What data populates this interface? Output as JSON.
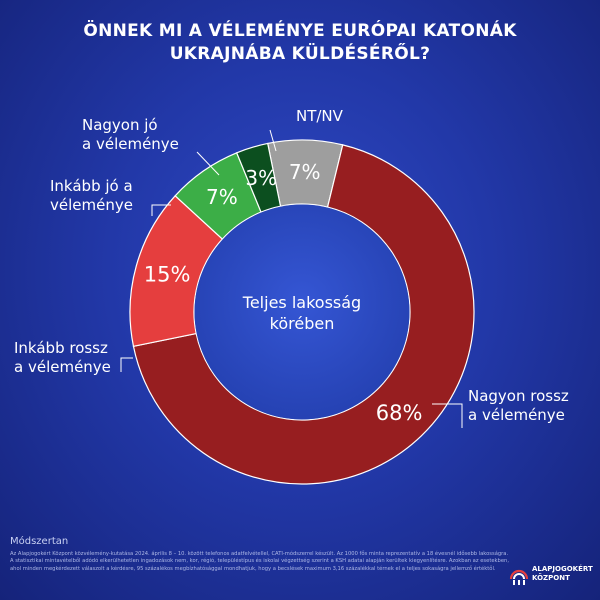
{
  "title_lines": [
    "ÖNNEK MI A VÉLEMÉNYE EURÓPAI KATONÁK",
    "UKRAJNÁBA KÜLDÉSÉRŐL?"
  ],
  "center_label": [
    "Teljes lakosság",
    "körében"
  ],
  "chart_data": {
    "type": "pie",
    "donut": true,
    "title": "ÖNNEK MI A VÉLEMÉNYE EURÓPAI KATONÁK UKRAJNÁBA KÜLDÉSÉRŐL?",
    "slices": [
      {
        "label": "NT/NV",
        "label_lines": [
          "NT/NV"
        ],
        "value": 7,
        "display": "7%",
        "color": "#9e9e9e"
      },
      {
        "label": "Nagyon rossz a véleménye",
        "label_lines": [
          "Nagyon rossz",
          "a véleménye"
        ],
        "value": 68,
        "display": "68%",
        "color": "#971e20"
      },
      {
        "label": "Inkább rossz a véleménye",
        "label_lines": [
          "Inkább rossz",
          "a véleménye"
        ],
        "value": 15,
        "display": "15%",
        "color": "#e53e3e"
      },
      {
        "label": "Inkább jó a véleménye",
        "label_lines": [
          "Inkább jó a",
          "véleménye"
        ],
        "value": 7,
        "display": "7%",
        "color": "#3cae47"
      },
      {
        "label": "Nagyon jó a véleménye",
        "label_lines": [
          "Nagyon jó",
          "a véleménye"
        ],
        "value": 3,
        "display": "3%",
        "color": "#0c4f1f"
      }
    ]
  },
  "footer": {
    "title": "Módszertan",
    "text": "Az Alapjogokért Központ közvélemény-kutatása 2024. április 8 – 10. között telefonos adatfelvétellel, CATI-módszerrel készült. Az 1000 fős minta reprezentatív a 18 évesnél idősebb lakosságra. A statisztikai mintavételből adódó elkerülhetetlen ingadozások nem, kor, régió, településtípus és iskolai végzettség szerint a KSH adatai alapján kerültek kiegyenlítésre. Azokban az esetekben, ahol minden megkérdezett válaszolt a kérdésre, 95 százalékos megbízhatósággal mondhatjuk, hogy a becslések maximum 3,16 százalékkal térnek el a teljes sokaságra jellemző értéktől."
  },
  "logo": {
    "lines": [
      "ALAPJOGOKÉRT",
      "KÖZPONT"
    ]
  }
}
